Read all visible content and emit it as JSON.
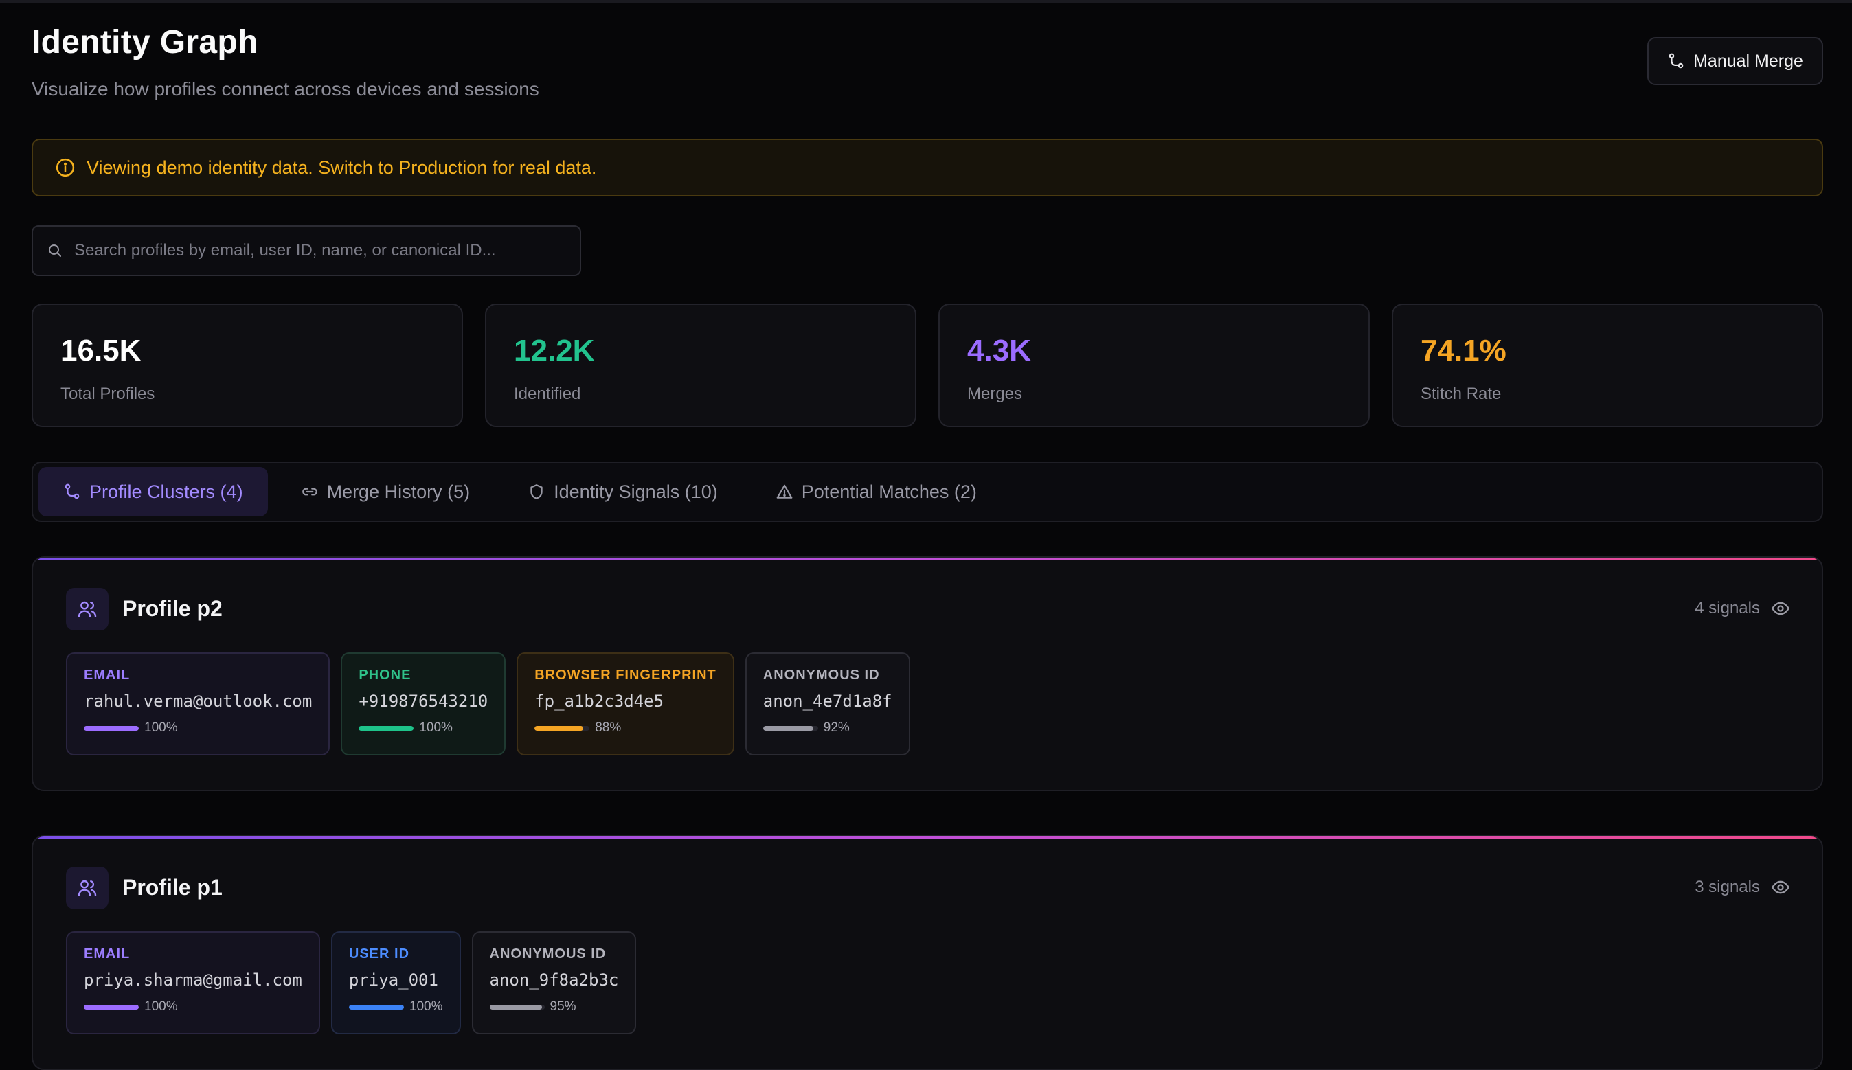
{
  "header": {
    "title": "Identity Graph",
    "subtitle": "Visualize how profiles connect across devices and sessions",
    "manual_merge_label": "Manual Merge"
  },
  "banner": {
    "text": "Viewing demo identity data. Switch to Production for real data."
  },
  "search": {
    "placeholder": "Search profiles by email, user ID, name, or canonical ID..."
  },
  "stats": [
    {
      "value": "16.5K",
      "label": "Total Profiles",
      "color": "#ffffff"
    },
    {
      "value": "12.2K",
      "label": "Identified",
      "color": "#22c38e"
    },
    {
      "value": "4.3K",
      "label": "Merges",
      "color": "#9b6cff"
    },
    {
      "value": "74.1%",
      "label": "Stitch Rate",
      "color": "#f5a524"
    }
  ],
  "tabs": [
    {
      "label": "Profile Clusters (4)",
      "icon": "branch-icon",
      "active": true
    },
    {
      "label": "Merge History (5)",
      "icon": "link-icon",
      "active": false
    },
    {
      "label": "Identity Signals (10)",
      "icon": "shield-icon",
      "active": false
    },
    {
      "label": "Potential Matches (2)",
      "icon": "warning-icon",
      "active": false
    }
  ],
  "profiles": [
    {
      "name": "Profile p2",
      "signals_label": "4 signals",
      "signals": [
        {
          "type": "EMAIL",
          "value": "rahul.verma@outlook.com",
          "confidence": 100,
          "pct_label": "100%"
        },
        {
          "type": "PHONE",
          "value": "+919876543210",
          "confidence": 100,
          "pct_label": "100%"
        },
        {
          "type": "BROWSER FINGERPRINT",
          "value": "fp_a1b2c3d4e5",
          "confidence": 88,
          "pct_label": "88%"
        },
        {
          "type": "ANONYMOUS ID",
          "value": "anon_4e7d1a8f",
          "confidence": 92,
          "pct_label": "92%"
        }
      ]
    },
    {
      "name": "Profile p1",
      "signals_label": "3 signals",
      "signals": [
        {
          "type": "EMAIL",
          "value": "priya.sharma@gmail.com",
          "confidence": 100,
          "pct_label": "100%"
        },
        {
          "type": "USER ID",
          "value": "priya_001",
          "confidence": 100,
          "pct_label": "100%"
        },
        {
          "type": "ANONYMOUS ID",
          "value": "anon_9f8a2b3c",
          "confidence": 95,
          "pct_label": "95%"
        }
      ]
    }
  ]
}
